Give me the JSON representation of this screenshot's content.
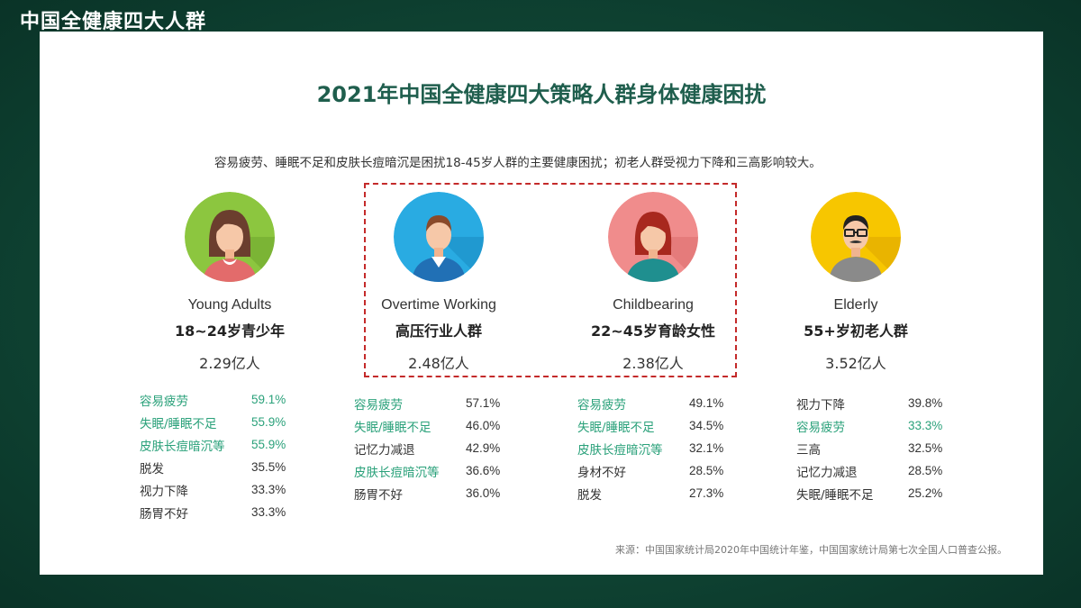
{
  "header": {
    "title": "中国全健康四大人群"
  },
  "main_title": "2021年中国全健康四大策略人群身体健康困扰",
  "subtitle": "容易疲劳、睡眠不足和皮肤长痘暗沉是困扰18-45岁人群的主要健康困扰；初老人群受视力下降和三高影响较大。",
  "colors": {
    "highlight": "#2aa17a",
    "normal": "#333333",
    "dashed_border": "#c42a2a"
  },
  "groups": [
    {
      "icon": "young-woman-avatar-icon",
      "avatar_bg": "#8cc63f",
      "name_en": "Young Adults",
      "name_zh": "18~24岁青少年",
      "population": "2.29亿人",
      "stats": [
        {
          "label": "容易疲劳",
          "value": "59.1%",
          "highlight": true
        },
        {
          "label": "失眠/睡眠不足",
          "value": "55.9%",
          "highlight": true
        },
        {
          "label": "皮肤长痘暗沉等",
          "value": "55.9%",
          "highlight": true
        },
        {
          "label": "脱发",
          "value": "35.5%",
          "highlight": false
        },
        {
          "label": "视力下降",
          "value": "33.3%",
          "highlight": false
        },
        {
          "label": "肠胃不好",
          "value": "33.3%",
          "highlight": false
        }
      ]
    },
    {
      "icon": "man-avatar-icon",
      "avatar_bg": "#29abe2",
      "name_en": "Overtime Working",
      "name_zh": "高压行业人群",
      "population": "2.48亿人",
      "stats": [
        {
          "label": "容易疲劳",
          "value": "57.1%",
          "highlight": true
        },
        {
          "label": "失眠/睡眠不足",
          "value": "46.0%",
          "highlight": true
        },
        {
          "label": "记忆力减退",
          "value": "42.9%",
          "highlight": false
        },
        {
          "label": "皮肤长痘暗沉等",
          "value": "36.6%",
          "highlight": true
        },
        {
          "label": "肠胃不好",
          "value": "36.0%",
          "highlight": false
        }
      ]
    },
    {
      "icon": "woman-avatar-icon",
      "avatar_bg": "#f08c8c",
      "name_en": "Childbearing",
      "name_zh": "22~45岁育龄女性",
      "population": "2.38亿人",
      "stats": [
        {
          "label": "容易疲劳",
          "value": "49.1%",
          "highlight": true
        },
        {
          "label": "失眠/睡眠不足",
          "value": "34.5%",
          "highlight": true
        },
        {
          "label": "皮肤长痘暗沉等",
          "value": "32.1%",
          "highlight": true
        },
        {
          "label": "身材不好",
          "value": "28.5%",
          "highlight": false
        },
        {
          "label": "脱发",
          "value": "27.3%",
          "highlight": false
        }
      ]
    },
    {
      "icon": "elderly-man-avatar-icon",
      "avatar_bg": "#f7c600",
      "name_en": "Elderly",
      "name_zh": "55+岁初老人群",
      "population": "3.52亿人",
      "stats": [
        {
          "label": "视力下降",
          "value": "39.8%",
          "highlight": false
        },
        {
          "label": "容易疲劳",
          "value": "33.3%",
          "highlight": true
        },
        {
          "label": "三高",
          "value": "32.5%",
          "highlight": false
        },
        {
          "label": "记忆力减退",
          "value": "28.5%",
          "highlight": false
        },
        {
          "label": "失眠/睡眠不足",
          "value": "25.2%",
          "highlight": false
        }
      ]
    }
  ],
  "source": "来源：中国国家统计局2020年中国统计年鉴，中国国家统计局第七次全国人口普查公报。"
}
